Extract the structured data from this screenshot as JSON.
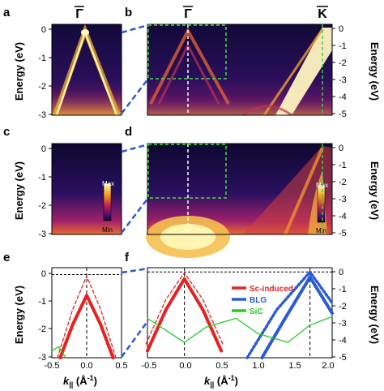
{
  "figure": {
    "panel_labels": [
      "a",
      "b",
      "c",
      "d",
      "e",
      "f"
    ],
    "top_labels": {
      "gamma": "Γ",
      "kpoint": "K"
    },
    "energy_label": "Energy (eV)",
    "energy_ticks_left": [
      "0",
      "-1",
      "-2",
      "-3"
    ],
    "energy_ticks_right": [
      "0",
      "-1",
      "-2",
      "-3",
      "-4",
      "-5"
    ],
    "colorbar": {
      "max": "Max",
      "min": "Min"
    },
    "k_label_main": "k",
    "k_label_sub": "||",
    "k_label_unit": " (Å",
    "k_label_exp": "-1",
    "k_label_close": ")",
    "k_ticks_e": [
      "-0.5",
      "0.0",
      "0.5"
    ],
    "k_ticks_f": [
      "-0.5",
      "0.0",
      "0.5",
      "1.0",
      "1.5",
      "2.0"
    ],
    "legend": [
      {
        "name": "Sc-induced",
        "color": "#e82020"
      },
      {
        "name": "BLG",
        "color": "#2a5bd6"
      },
      {
        "name": "SiC",
        "color": "#22cc22"
      }
    ]
  },
  "chart_data": [
    {
      "panel": "e",
      "type": "line",
      "xlabel": "k|| (Å-1)",
      "ylabel": "Energy (eV)",
      "xlim": [
        -0.5,
        0.5
      ],
      "ylim": [
        -3,
        0.25
      ],
      "series": [
        {
          "name": "Sc-induced",
          "style": "solid",
          "x": [
            -0.38,
            -0.2,
            0.0,
            0.2,
            0.38
          ],
          "y": [
            -3.0,
            -1.8,
            -0.75,
            -1.8,
            -3.0
          ]
        },
        {
          "name": "Sc-induced",
          "style": "dashed",
          "x": [
            -0.42,
            -0.2,
            0.0,
            0.2,
            0.42
          ],
          "y": [
            -3.0,
            -1.25,
            -0.05,
            -1.25,
            -3.0
          ]
        },
        {
          "name": "SiC",
          "style": "solid",
          "x": [
            -0.5,
            -0.4,
            -0.3
          ],
          "y": [
            -2.75,
            -2.6,
            -3.0
          ]
        }
      ]
    },
    {
      "panel": "f",
      "type": "line",
      "xlabel": "k|| (Å-1)",
      "ylabel": "Energy (eV)",
      "xlim": [
        -0.5,
        2.0
      ],
      "ylim": [
        -5,
        0.25
      ],
      "series": [
        {
          "name": "Sc-induced",
          "style": "solid",
          "x": [
            -0.5,
            -0.25,
            0.0,
            0.25,
            0.5
          ],
          "y": [
            -4.6,
            -2.2,
            -0.4,
            -2.2,
            -4.6
          ]
        },
        {
          "name": "Sc-induced",
          "style": "dashed",
          "x": [
            -0.52,
            -0.25,
            0.0,
            0.25,
            0.52
          ],
          "y": [
            -4.2,
            -1.6,
            -0.05,
            -1.6,
            -4.2
          ]
        },
        {
          "name": "BLG",
          "style": "solid",
          "x": [
            1.05,
            1.35,
            1.7,
            2.0
          ],
          "y": [
            -5.0,
            -2.8,
            -0.3,
            -2.4
          ]
        },
        {
          "name": "BLG",
          "style": "dotted",
          "x": [
            0.85,
            1.25,
            1.7,
            2.0
          ],
          "y": [
            -5.0,
            -2.2,
            0.0,
            -1.8
          ]
        },
        {
          "name": "SiC",
          "style": "solid",
          "x": [
            -0.5,
            -0.25,
            0.0,
            0.3,
            0.7,
            1.0,
            1.4,
            1.7,
            2.0
          ],
          "y": [
            -2.7,
            -3.4,
            -4.1,
            -3.2,
            -2.7,
            -3.6,
            -4.1,
            -3.1,
            -2.6
          ]
        }
      ]
    }
  ]
}
